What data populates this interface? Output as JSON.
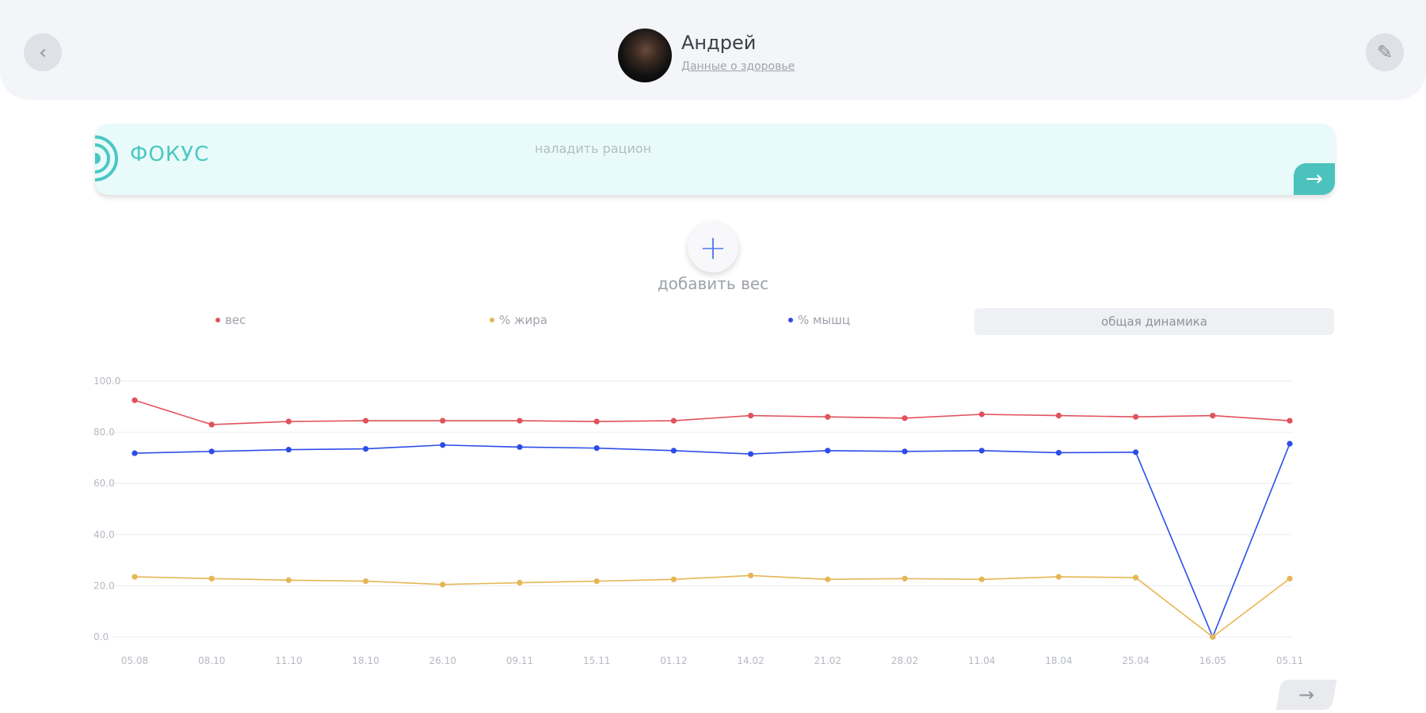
{
  "header": {
    "user_name": "Андрей",
    "health_link": "Данные о здоровье",
    "back_icon": "chevron-left-icon",
    "edit_icon": "pencil-icon"
  },
  "focus": {
    "title": "ФОКУС",
    "text": "наладить рацион",
    "accent": "#4bc7c2"
  },
  "add_weight": {
    "label": "добавить вес"
  },
  "legend": {
    "weight": "вес",
    "fat": "% жира",
    "muscle": "% мышц",
    "dynamics_button": "общая динамика"
  },
  "chart_data": {
    "type": "line",
    "categories": [
      "05.08",
      "08.10",
      "11.10",
      "18.10",
      "26.10",
      "09.11",
      "15.11",
      "01.12",
      "14.02",
      "21.02",
      "28.02",
      "11.04",
      "18.04",
      "25.04",
      "16.05",
      "05.11"
    ],
    "series": [
      {
        "name": "вес",
        "color": "#e0525c",
        "values": [
          92.5,
          83.0,
          84.2,
          84.5,
          84.5,
          84.5,
          84.2,
          84.5,
          86.5,
          86.0,
          85.5,
          87.0,
          86.5,
          86.0,
          86.5,
          84.5
        ]
      },
      {
        "name": "% мышц",
        "color": "#2d4de8",
        "values": [
          71.8,
          72.5,
          73.2,
          73.5,
          75.0,
          74.2,
          73.8,
          72.8,
          71.5,
          72.8,
          72.5,
          72.8,
          72.0,
          72.2,
          0.0,
          75.5
        ]
      },
      {
        "name": "% жира",
        "color": "#e5b655",
        "values": [
          23.5,
          22.8,
          22.2,
          21.8,
          20.5,
          21.2,
          21.8,
          22.5,
          24.0,
          22.5,
          22.8,
          22.5,
          23.5,
          23.2,
          0.0,
          22.8
        ]
      }
    ],
    "y_ticks": [
      "100.0",
      "80.0",
      "60.0",
      "40.0",
      "20.0",
      "0.0"
    ],
    "ylim": [
      0,
      100
    ],
    "grid": true
  }
}
